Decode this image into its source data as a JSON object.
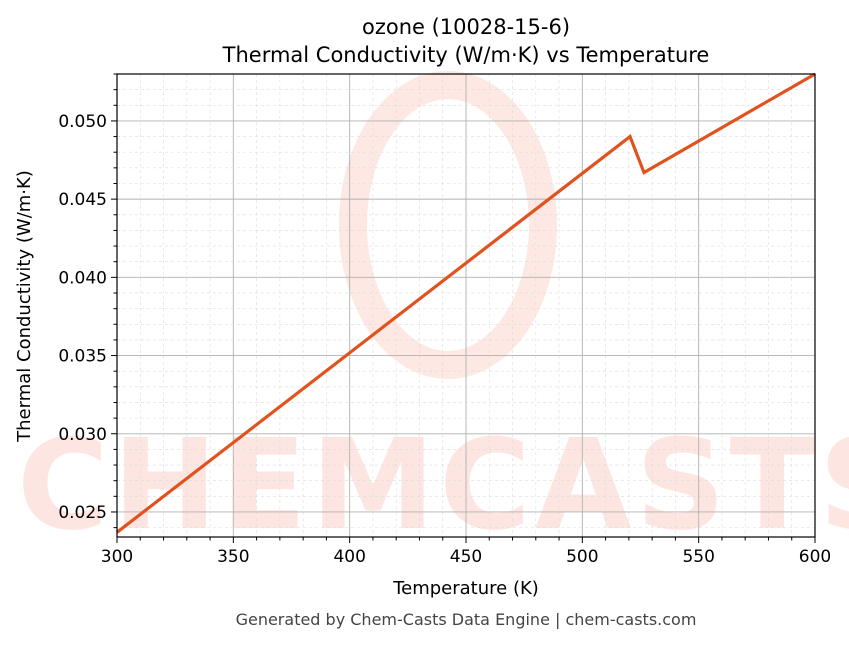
{
  "chart_data": {
    "type": "line",
    "title": "ozone (10028-15-6)",
    "subtitle": "Thermal Conductivity (W/m·K) vs Temperature",
    "xlabel": "Temperature (K)",
    "ylabel": "Thermal Conductivity (W/m·K)",
    "xlim": [
      300,
      600
    ],
    "ylim": [
      0.0234,
      0.053
    ],
    "xticks": [
      "300",
      "350",
      "400",
      "450",
      "500",
      "550",
      "600"
    ],
    "yticks": [
      "0.025",
      "0.030",
      "0.035",
      "0.040",
      "0.045",
      "0.050"
    ],
    "grid": true,
    "series": [
      {
        "color": "#e0531f",
        "x": [
          300,
          520.5,
          526.5,
          600
        ],
        "y": [
          0.0237,
          0.049,
          0.0467,
          0.053
        ]
      }
    ]
  },
  "watermark": "CHEMCASTS",
  "footer": "Generated by Chem-Casts Data Engine | chem-casts.com"
}
